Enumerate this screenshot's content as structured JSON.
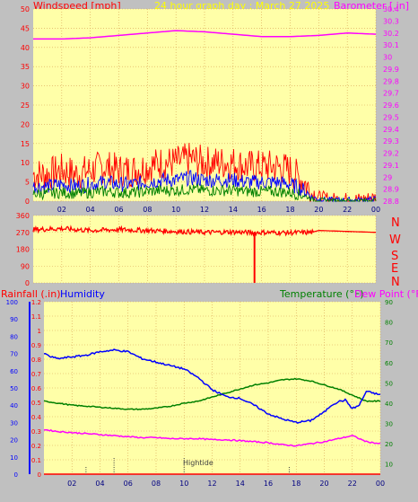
{
  "header": {
    "title": "24 hour graph day : March 27 2025",
    "left_label": "Windspeed [mph]",
    "right_label": "Barometer [.in]"
  },
  "colors": {
    "background": "#c0c0c0",
    "plot_bg": "#ffffa8",
    "grid": "#d8a050",
    "wind": "#ff0000",
    "wind_avg": "#0000ff",
    "gust_low": "#008000",
    "barometer": "#ff00ff",
    "direction": "#ff0000",
    "humidity": "#0000ff",
    "temperature": "#008000",
    "dewpoint": "#ff00ff",
    "rain": "#ff0000",
    "title_color": "#ffff00"
  },
  "compass": [
    "N",
    "W",
    "S",
    "E",
    "N"
  ],
  "bottom_header": {
    "rain_label": "Rainfall (.in)",
    "humidity_label": "Humidity",
    "temp_label": "Temperature (°F)",
    "dew_label": "Dew Point (°F)"
  },
  "hightide_label": "Hightide",
  "chart_data": [
    {
      "type": "line",
      "title": "24 hour graph day : March 27 2025",
      "x_ticks": [
        "02",
        "04",
        "06",
        "08",
        "10",
        "12",
        "14",
        "16",
        "18",
        "20",
        "22",
        "00"
      ],
      "left_axis": {
        "label": "Windspeed [mph]",
        "ylim": [
          0,
          50
        ],
        "ticks": [
          "0",
          "5",
          "10",
          "15",
          "20",
          "25",
          "30",
          "35",
          "40",
          "45",
          "50"
        ]
      },
      "right_axis": {
        "label": "Barometer [.in]",
        "ylim": [
          28.8,
          30.4
        ],
        "ticks": [
          "28.8",
          "28.9",
          "29",
          "29.1",
          "29.2",
          "29.3",
          "29.4",
          "29.5",
          "29.6",
          "29.7",
          "29.8",
          "29.9",
          "30",
          "30.1",
          "30.2",
          "30.3",
          "30.4"
        ]
      },
      "series": [
        {
          "name": "Windspeed",
          "axis": "left",
          "x": [
            0,
            1,
            2,
            3,
            4,
            5,
            6,
            7,
            8,
            9,
            10,
            11,
            12,
            13,
            14,
            15,
            16,
            17,
            18,
            19,
            19.5,
            20,
            21,
            22,
            23,
            24
          ],
          "y": [
            7,
            7,
            8,
            7,
            8,
            9,
            8,
            8,
            9,
            10,
            10,
            11,
            10,
            10,
            10,
            9,
            9,
            9,
            8,
            5,
            2,
            1,
            0.5,
            0.5,
            0.5,
            1
          ]
        },
        {
          "name": "Barometer",
          "axis": "right",
          "x": [
            0,
            2,
            4,
            6,
            8,
            10,
            12,
            14,
            16,
            18,
            20,
            22,
            24
          ],
          "y": [
            30.15,
            30.15,
            30.16,
            30.18,
            30.2,
            30.22,
            30.21,
            30.19,
            30.17,
            30.17,
            30.18,
            30.2,
            30.19
          ]
        }
      ]
    },
    {
      "type": "line",
      "title": "Wind direction",
      "ylim": [
        0,
        360
      ],
      "y_ticks": [
        "0",
        "90",
        "180",
        "270",
        "360"
      ],
      "series": [
        {
          "name": "Direction",
          "x": [
            0,
            2,
            4,
            6,
            8,
            10,
            12,
            14,
            15.5,
            16,
            18,
            19.5,
            20,
            22,
            24
          ],
          "y": [
            285,
            290,
            280,
            285,
            280,
            275,
            270,
            272,
            268,
            270,
            268,
            270,
            280,
            275,
            270
          ]
        }
      ]
    },
    {
      "type": "line",
      "title": "",
      "x_ticks": [
        "02",
        "04",
        "06",
        "08",
        "10",
        "12",
        "14",
        "16",
        "18",
        "20",
        "22",
        "00"
      ],
      "rain_axis": {
        "label": "Rainfall (.in)",
        "ylim": [
          0,
          1.2
        ],
        "ticks": [
          "0",
          "0.1",
          "0.2",
          "0.3",
          "0.4",
          "0.5",
          "0.6",
          "0.7",
          "0.8",
          "0.9",
          "1",
          "1.1",
          "1.2"
        ]
      },
      "humidity_axis": {
        "label": "Humidity",
        "ylim": [
          0,
          100
        ],
        "ticks": [
          "0",
          "10",
          "20",
          "30",
          "40",
          "50",
          "60",
          "70",
          "80",
          "90",
          "100"
        ]
      },
      "temp_axis": {
        "label": "Temperature (°F)",
        "ylim": [
          5,
          90
        ],
        "ticks": [
          "10",
          "20",
          "30",
          "40",
          "50",
          "60",
          "70",
          "80",
          "90"
        ]
      },
      "series": [
        {
          "name": "Humidity",
          "axis": "humidity",
          "x": [
            0,
            0.5,
            1,
            2,
            3,
            4,
            5,
            6,
            7,
            8,
            9,
            10,
            11,
            12,
            13,
            14,
            15,
            16,
            17,
            18,
            19,
            20,
            20.5,
            21,
            21.5,
            22,
            22.5,
            23,
            23.5,
            24
          ],
          "y": [
            70,
            68,
            67,
            68,
            69,
            71,
            72,
            71,
            67,
            65,
            63,
            61,
            56,
            49,
            45,
            44,
            40,
            35,
            32,
            30,
            31,
            36,
            40,
            42,
            43,
            38,
            40,
            48,
            47,
            46
          ]
        },
        {
          "name": "Temperature (°F)",
          "axis": "temp",
          "x": [
            0,
            1,
            2,
            3,
            4,
            5,
            6,
            7,
            8,
            9,
            10,
            11,
            12,
            13,
            14,
            15,
            16,
            17,
            18,
            19,
            20,
            21,
            22,
            23,
            24
          ],
          "y": [
            41,
            40,
            39,
            38.5,
            38,
            37.5,
            37,
            37,
            37.5,
            38.5,
            40,
            41,
            43,
            45,
            47,
            49,
            50,
            51.5,
            52,
            51,
            49,
            47,
            44,
            41,
            41
          ]
        },
        {
          "name": "Dew Point (°F)",
          "axis": "temp",
          "x": [
            0,
            1,
            2,
            3,
            4,
            5,
            6,
            7,
            8,
            9,
            10,
            11,
            12,
            13,
            14,
            15,
            16,
            17,
            18,
            19,
            20,
            21,
            22,
            23,
            24
          ],
          "y": [
            27,
            26,
            25.5,
            25,
            24.5,
            24,
            23.5,
            23,
            23,
            22.5,
            22.5,
            22.5,
            22,
            22,
            21.5,
            21,
            20.5,
            19.5,
            19,
            20,
            21,
            22.5,
            24,
            21,
            20
          ]
        },
        {
          "name": "Rainfall (.in)",
          "axis": "rain",
          "x": [
            0,
            24
          ],
          "y": [
            0,
            0
          ]
        }
      ],
      "hightide_marks": [
        3,
        5,
        10,
        17.5
      ]
    }
  ]
}
